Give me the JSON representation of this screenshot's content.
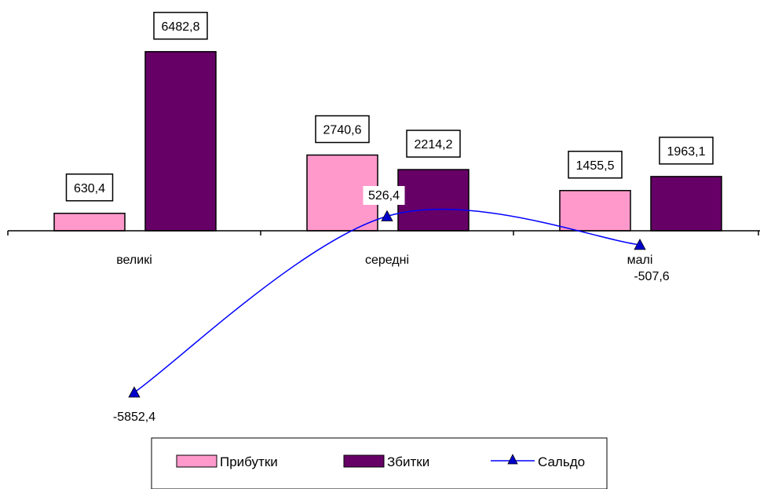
{
  "chart_data": {
    "type": "bar",
    "categories": [
      "великі",
      "середні",
      "малі"
    ],
    "series": [
      {
        "name": "Прибутки",
        "kind": "bar",
        "color": "#FF99CC",
        "values": [
          630.4,
          2740.6,
          1455.5
        ],
        "labels": [
          "630,4",
          "2740,6",
          "1455,5"
        ]
      },
      {
        "name": "Збитки",
        "kind": "bar",
        "color": "#660066",
        "values": [
          6482.8,
          2214.2,
          1963.1
        ],
        "labels": [
          "6482,8",
          "2214,2",
          "1963,1"
        ]
      },
      {
        "name": "Сальдо",
        "kind": "line",
        "color": "#0000FF",
        "marker": "triangle",
        "marker_color": "#0000CC",
        "values": [
          -5852.4,
          526.4,
          -507.6
        ],
        "labels": [
          "-5852,4",
          "526,4",
          "-507,6"
        ]
      }
    ],
    "ylim": [
      -6400,
      6800
    ],
    "grid": false,
    "legend": {
      "position": "bottom",
      "items": [
        "Прибутки",
        "Збитки",
        "Сальдо"
      ]
    }
  }
}
